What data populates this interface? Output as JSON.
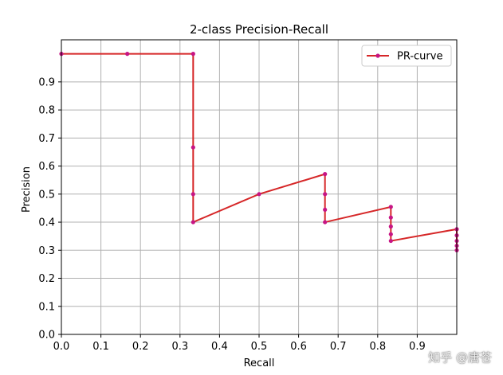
{
  "chart_data": {
    "type": "line",
    "title": "2-class Precision-Recall",
    "xlabel": "Recall",
    "ylabel": "Precision",
    "xlim": [
      0,
      1
    ],
    "ylim": [
      0,
      1.05
    ],
    "xticks": [
      "0.0",
      "0.1",
      "0.2",
      "0.3",
      "0.4",
      "0.5",
      "0.6",
      "0.7",
      "0.8",
      "0.9"
    ],
    "yticks": [
      "0.0",
      "0.1",
      "0.2",
      "0.3",
      "0.4",
      "0.5",
      "0.6",
      "0.7",
      "0.8",
      "0.9"
    ],
    "grid": true,
    "legend_position": "top-right",
    "series": [
      {
        "name": "PR-curve",
        "color": "#d62728",
        "marker_color": "#c71585",
        "step": "post",
        "x": [
          0.0,
          0.1667,
          0.3333,
          0.3333,
          0.3333,
          0.3333,
          0.5,
          0.6667,
          0.6667,
          0.6667,
          0.6667,
          0.8333,
          0.8333,
          0.8333,
          0.8333,
          0.8333,
          1.0,
          1.0,
          1.0,
          1.0,
          1.0
        ],
        "y": [
          1.0,
          1.0,
          1.0,
          0.6667,
          0.5,
          0.4,
          0.5,
          0.5714,
          0.5,
          0.4444,
          0.4,
          0.4545,
          0.4167,
          0.3846,
          0.3571,
          0.3333,
          0.375,
          0.3529,
          0.3333,
          0.3158,
          0.3
        ]
      }
    ]
  },
  "watermark": "知乎 @唐苍"
}
